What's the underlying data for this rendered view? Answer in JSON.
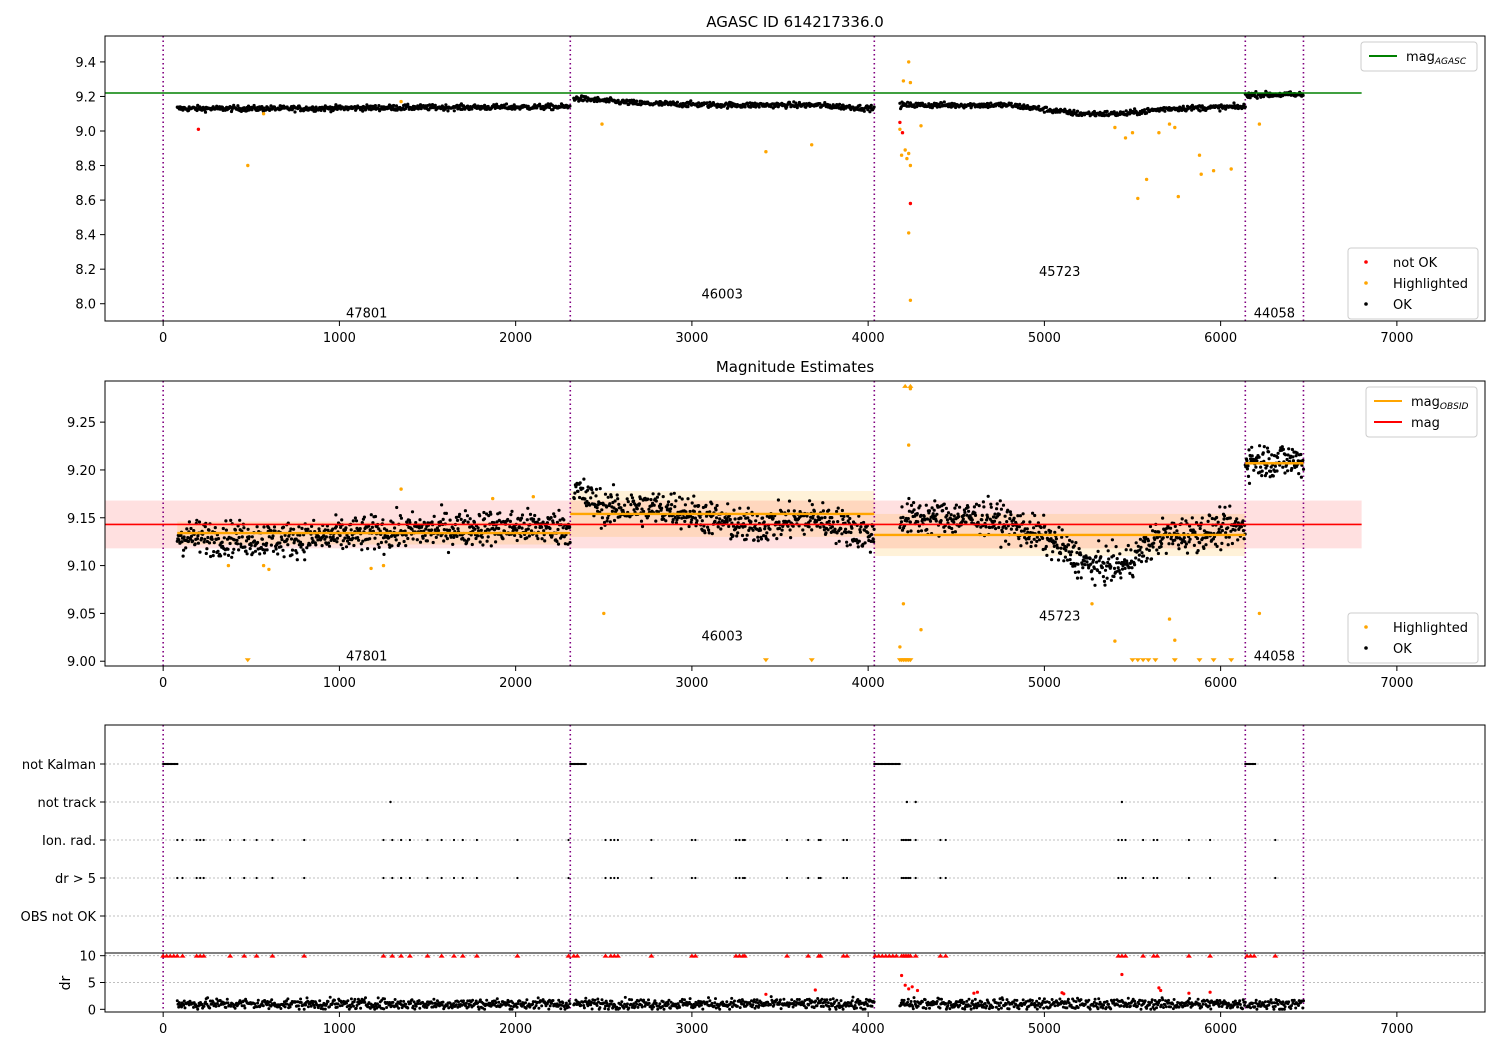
{
  "chart_data": [
    {
      "type": "scatter",
      "title": "AGASC ID 614217336.0",
      "xlim": [
        -330,
        7500
      ],
      "ylim": [
        7.9,
        9.55
      ],
      "xticks": [
        "0",
        "1000",
        "2000",
        "3000",
        "4000",
        "5000",
        "6000",
        "7000"
      ],
      "yticks": [
        "8.0",
        "8.2",
        "8.4",
        "8.6",
        "8.8",
        "9.0",
        "9.2",
        "9.4"
      ],
      "legend_top": {
        "placement": "top-right",
        "entries": [
          {
            "label": "mag",
            "sub": "AGASC",
            "color": "#008000"
          }
        ]
      },
      "legend_bottom": {
        "placement": "bottom-right",
        "entries": [
          {
            "label": "not OK",
            "color": "#ff0000"
          },
          {
            "label": "Highlighted",
            "color": "#ffa500"
          },
          {
            "label": "OK",
            "color": "#000000"
          }
        ]
      },
      "agasc_mag": 9.22,
      "agasc_x_range": [
        -330,
        6800
      ],
      "obsid_boundaries": [
        0,
        2310,
        4035,
        6140,
        6470
      ],
      "obsid_labels": [
        {
          "text": "47801",
          "x": 1155,
          "y": 7.95
        },
        {
          "text": "46003",
          "x": 3172,
          "y": 8.06
        },
        {
          "text": "45723",
          "x": 5087,
          "y": 8.19
        },
        {
          "text": "44058",
          "x": 6305,
          "y": 7.95
        }
      ],
      "series": [
        {
          "name": "OK",
          "color": "#000000",
          "segments": [
            {
              "x": [
                80,
                2310
              ],
              "levels": [
                [
                  80,
                  9.13
                ],
                [
                  700,
                  9.13
                ],
                [
                  1300,
                  9.135
                ],
                [
                  2310,
                  9.14
                ]
              ]
            },
            {
              "x": [
                2330,
                4035
              ],
              "levels": [
                [
                  2330,
                  9.19
                ],
                [
                  2700,
                  9.16
                ],
                [
                  3200,
                  9.15
                ],
                [
                  3700,
                  9.15
                ],
                [
                  4035,
                  9.13
                ]
              ]
            },
            {
              "x": [
                4180,
                6140
              ],
              "levels": [
                [
                  4180,
                  9.15
                ],
                [
                  4800,
                  9.15
                ],
                [
                  5200,
                  9.1
                ],
                [
                  5450,
                  9.1
                ],
                [
                  5700,
                  9.13
                ],
                [
                  6140,
                  9.14
                ]
              ]
            },
            {
              "x": [
                6140,
                6470
              ],
              "levels": [
                [
                  6140,
                  9.21
                ],
                [
                  6470,
                  9.21
                ]
              ]
            }
          ]
        },
        {
          "name": "Highlighted",
          "color": "#ffa500",
          "points": [
            [
              480,
              8.8
            ],
            [
              2490,
              9.04
            ],
            [
              3420,
              8.88
            ],
            [
              3680,
              8.92
            ],
            [
              4230,
              9.4
            ],
            [
              4200,
              9.29
            ],
            [
              4240,
              9.28
            ],
            [
              4180,
              9.01
            ],
            [
              4190,
              8.86
            ],
            [
              4210,
              8.89
            ],
            [
              4220,
              8.84
            ],
            [
              4230,
              8.87
            ],
            [
              4240,
              8.8
            ],
            [
              4230,
              8.41
            ],
            [
              4240,
              8.02
            ],
            [
              4300,
              9.03
            ],
            [
              5400,
              9.02
            ],
            [
              5460,
              8.96
            ],
            [
              5500,
              8.99
            ],
            [
              5530,
              8.61
            ],
            [
              5580,
              8.72
            ],
            [
              5650,
              8.99
            ],
            [
              5710,
              9.04
            ],
            [
              5740,
              9.02
            ],
            [
              5760,
              8.62
            ],
            [
              5880,
              8.86
            ],
            [
              5890,
              8.75
            ],
            [
              5960,
              8.77
            ],
            [
              6060,
              8.78
            ],
            [
              6220,
              9.04
            ],
            [
              1350,
              9.17
            ],
            [
              570,
              9.1
            ]
          ]
        },
        {
          "name": "not OK",
          "color": "#ff0000",
          "points": [
            [
              200,
              9.01
            ],
            [
              4180,
              9.05
            ],
            [
              4195,
              8.99
            ],
            [
              4240,
              8.58
            ]
          ]
        }
      ]
    },
    {
      "type": "scatter",
      "title": "Magnitude Estimates",
      "xlim": [
        -330,
        7500
      ],
      "ylim": [
        8.995,
        9.293
      ],
      "xticks": [
        "0",
        "1000",
        "2000",
        "3000",
        "4000",
        "5000",
        "6000",
        "7000"
      ],
      "yticks": [
        "9.00",
        "9.05",
        "9.10",
        "9.15",
        "9.20",
        "9.25"
      ],
      "legend_top": {
        "placement": "top-right",
        "entries": [
          {
            "label": "mag",
            "sub": "OBSID",
            "color": "#ffa500"
          },
          {
            "label": "mag",
            "color": "#ff0000"
          }
        ]
      },
      "legend_bottom": {
        "placement": "bottom-right",
        "entries": [
          {
            "label": "Highlighted",
            "color": "#ffa500"
          },
          {
            "label": "OK",
            "color": "#000000"
          }
        ]
      },
      "mag": 9.143,
      "mag_band": [
        9.118,
        9.168
      ],
      "mag_x_range": [
        -330,
        6800
      ],
      "obsid_mags": [
        {
          "x": [
            80,
            2310
          ],
          "mag": 9.134,
          "band": [
            9.122,
            9.146
          ]
        },
        {
          "x": [
            2310,
            4035
          ],
          "mag": 9.154,
          "band": [
            9.13,
            9.178
          ]
        },
        {
          "x": [
            4035,
            6140
          ],
          "mag": 9.132,
          "band": [
            9.11,
            9.154
          ]
        },
        {
          "x": [
            6140,
            6470
          ],
          "mag": 9.207,
          "band": [
            9.205,
            9.209
          ]
        }
      ],
      "obsid_boundaries": [
        0,
        2310,
        4035,
        6140,
        6470
      ],
      "obsid_labels": [
        {
          "text": "47801",
          "x": 1155,
          "y": 9.006
        },
        {
          "text": "46003",
          "x": 3172,
          "y": 9.027
        },
        {
          "text": "45723",
          "x": 5087,
          "y": 9.048
        },
        {
          "text": "44058",
          "x": 6305,
          "y": 9.006
        }
      ],
      "series": [
        {
          "name": "OK",
          "color": "#000000",
          "segments": [
            {
              "x": [
                80,
                2310
              ],
              "levels": [
                [
                  80,
                  9.13
                ],
                [
                  700,
                  9.127
                ],
                [
                  1300,
                  9.135
                ],
                [
                  1800,
                  9.14
                ],
                [
                  2310,
                  9.14
                ]
              ]
            },
            {
              "x": [
                2330,
                4035
              ],
              "levels": [
                [
                  2330,
                  9.18
                ],
                [
                  2500,
                  9.16
                ],
                [
                  2900,
                  9.16
                ],
                [
                  3300,
                  9.14
                ],
                [
                  3700,
                  9.15
                ],
                [
                  4035,
                  9.13
                ]
              ]
            },
            {
              "x": [
                4180,
                6140
              ],
              "levels": [
                [
                  4180,
                  9.15
                ],
                [
                  4700,
                  9.15
                ],
                [
                  5000,
                  9.13
                ],
                [
                  5250,
                  9.1
                ],
                [
                  5450,
                  9.1
                ],
                [
                  5650,
                  9.13
                ],
                [
                  6140,
                  9.14
                ]
              ]
            },
            {
              "x": [
                6140,
                6470
              ],
              "levels": [
                [
                  6140,
                  9.21
                ],
                [
                  6470,
                  9.21
                ]
              ]
            }
          ]
        },
        {
          "name": "Highlighted",
          "color": "#ffa500",
          "points": [
            [
              2500,
              9.05
            ],
            [
              4230,
              9.226
            ],
            [
              4240,
              9.285
            ],
            [
              4200,
              9.06
            ],
            [
              4180,
              9.015
            ],
            [
              4300,
              9.033
            ],
            [
              5270,
              9.06
            ],
            [
              5400,
              9.021
            ],
            [
              5710,
              9.044
            ],
            [
              5740,
              9.022
            ],
            [
              6220,
              9.05
            ],
            [
              1350,
              9.18
            ],
            [
              1250,
              9.1
            ],
            [
              1180,
              9.097
            ],
            [
              570,
              9.1
            ],
            [
              600,
              9.096
            ],
            [
              370,
              9.1
            ],
            [
              1870,
              9.17
            ],
            [
              2100,
              9.172
            ]
          ]
        },
        {
          "name": "Highlighted-lower",
          "color": "#ffa500",
          "marker": "triangle-down",
          "y": 9.0,
          "x": [
            480,
            3420,
            3680,
            4180,
            4190,
            4200,
            4210,
            4220,
            4230,
            4240,
            5500,
            5530,
            5560,
            5590,
            5630,
            5740,
            5880,
            5960,
            6060
          ]
        },
        {
          "name": "Highlighted-upper",
          "color": "#ffa500",
          "marker": "triangle-up",
          "y": 9.29,
          "x": [
            4210,
            4240
          ]
        }
      ]
    },
    {
      "type": "scatter",
      "title": "",
      "xlim": [
        -330,
        7500
      ],
      "flag_rows": [
        "not Kalman",
        "not track",
        "Ion. rad.",
        "dr > 5",
        "OBS not OK"
      ],
      "flag_points": {
        "not Kalman": [
          [
            0,
            80
          ],
          [
            2310,
            2400
          ],
          [
            4035,
            4180
          ],
          [
            6140,
            6200
          ]
        ],
        "not track": [
          1290,
          4220,
          4270,
          5440
        ],
        "Ion. rad.": [
          80,
          110,
          190,
          210,
          230,
          380,
          460,
          530,
          620,
          800,
          1250,
          1300,
          1350,
          1400,
          1500,
          1580,
          1650,
          1700,
          1780,
          2010,
          2300,
          2510,
          2540,
          2560,
          2580,
          2770,
          3000,
          3020,
          3250,
          3270,
          3290,
          3300,
          3540,
          3660,
          3720,
          3730,
          3860,
          3880,
          4190,
          4200,
          4210,
          4220,
          4230,
          4240,
          4270,
          4410,
          4440,
          5420,
          5440,
          5460,
          5560,
          5620,
          5640,
          5820,
          5940,
          6310
        ],
        "dr > 5": [
          80,
          110,
          190,
          210,
          230,
          380,
          460,
          530,
          620,
          800,
          1250,
          1300,
          1350,
          1400,
          1500,
          1580,
          1650,
          1700,
          1780,
          2010,
          2300,
          2510,
          2540,
          2560,
          2580,
          2770,
          3000,
          3020,
          3250,
          3270,
          3290,
          3300,
          3540,
          3660,
          3720,
          3730,
          3860,
          3880,
          4190,
          4200,
          4210,
          4220,
          4230,
          4240,
          4270,
          4410,
          4440,
          5420,
          5440,
          5460,
          5560,
          5620,
          5640,
          5820,
          5940,
          6310
        ],
        "OBS not OK": []
      },
      "obsid_boundaries": [
        0,
        2310,
        4035,
        6140,
        6470
      ]
    },
    {
      "type": "scatter",
      "title": "",
      "xlim": [
        -330,
        7500
      ],
      "ylim": [
        -0.5,
        10.5
      ],
      "ylabel": "dr",
      "xticks": [
        "0",
        "1000",
        "2000",
        "3000",
        "4000",
        "5000",
        "6000",
        "7000"
      ],
      "yticks": [
        "0",
        "5",
        "10"
      ],
      "clip_value": 10,
      "dr_series": {
        "name": "dr",
        "color": "#000000",
        "typical": 1.0
      },
      "dr_high": {
        "color": "#ff0000",
        "points": [
          [
            4190,
            6.3
          ],
          [
            4210,
            4.5
          ],
          [
            4230,
            3.8
          ],
          [
            4250,
            4.2
          ],
          [
            4280,
            3.5
          ],
          [
            4600,
            3.0
          ],
          [
            4620,
            3.2
          ],
          [
            5100,
            3.1
          ],
          [
            5110,
            2.9
          ],
          [
            5440,
            6.5
          ],
          [
            5650,
            4.0
          ],
          [
            5660,
            3.5
          ],
          [
            5820,
            3.0
          ],
          [
            5940,
            3.2
          ],
          [
            3420,
            2.8
          ],
          [
            3700,
            3.6
          ]
        ]
      },
      "dr_clipped_x": [
        0,
        20,
        40,
        60,
        80,
        110,
        190,
        210,
        230,
        380,
        460,
        530,
        620,
        800,
        1250,
        1300,
        1350,
        1400,
        1500,
        1580,
        1650,
        1700,
        1780,
        2010,
        2300,
        2330,
        2350,
        2510,
        2540,
        2560,
        2580,
        2770,
        3000,
        3020,
        3250,
        3270,
        3290,
        3300,
        3540,
        3660,
        3720,
        3730,
        3860,
        3880,
        4040,
        4060,
        4080,
        4100,
        4120,
        4140,
        4160,
        4190,
        4200,
        4210,
        4220,
        4230,
        4240,
        4270,
        4410,
        4440,
        5420,
        5440,
        5460,
        5560,
        5620,
        5640,
        5820,
        5940,
        6150,
        6170,
        6190,
        6310
      ],
      "obsid_boundaries": [
        0,
        2310,
        4035,
        6140,
        6470
      ]
    }
  ]
}
